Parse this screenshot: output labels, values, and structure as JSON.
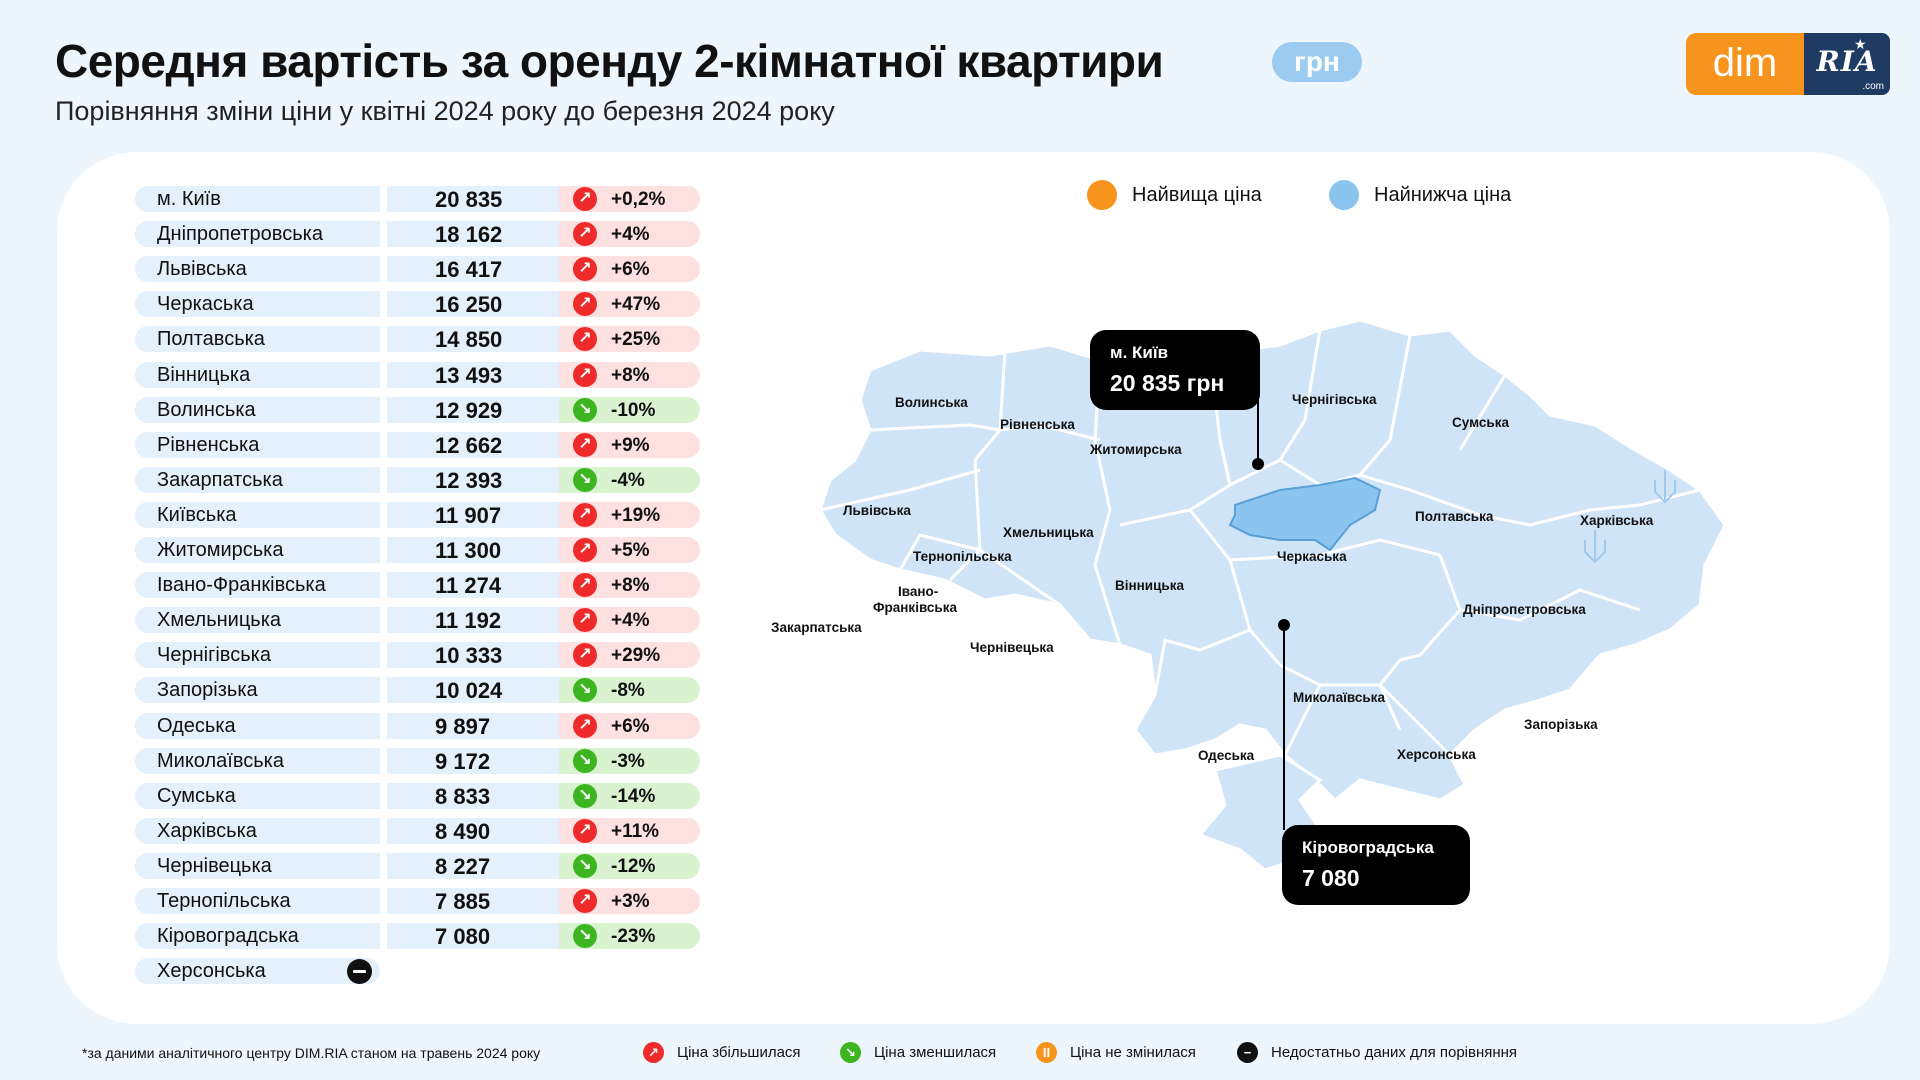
{
  "header": {
    "title": "Середня вартість за оренду 2-кімнатної квартири",
    "currency": "грн",
    "subtitle": "Порівняння зміни ціни у квітні 2024 року до березня 2024 року"
  },
  "logo": {
    "dim": "dim",
    "ria": "RIA",
    "com": ".com"
  },
  "legend": {
    "highest": "Найвища ціна",
    "lowest": "Найнижча ціна"
  },
  "colors": {
    "highest": "#f7941d",
    "lowest": "#8cc4f0",
    "increase": "#ee2a2a",
    "decrease": "#3cb521",
    "unchanged": "#f7941d",
    "no_data": "#111111"
  },
  "chart_data": {
    "type": "table",
    "columns": [
      "region",
      "price_uah",
      "change"
    ],
    "rows": [
      {
        "region": "м. Київ",
        "value": "20 835",
        "price": 20835,
        "change": "+0,2%",
        "dir": "up"
      },
      {
        "region": "Дніпропетровська",
        "value": "18 162",
        "price": 18162,
        "change": "+4%",
        "dir": "up"
      },
      {
        "region": "Львівська",
        "value": "16 417",
        "price": 16417,
        "change": "+6%",
        "dir": "up"
      },
      {
        "region": "Черкаська",
        "value": "16 250",
        "price": 16250,
        "change": "+47%",
        "dir": "up"
      },
      {
        "region": "Полтавська",
        "value": "14 850",
        "price": 14850,
        "change": "+25%",
        "dir": "up"
      },
      {
        "region": "Вінницька",
        "value": "13 493",
        "price": 13493,
        "change": "+8%",
        "dir": "up"
      },
      {
        "region": "Волинська",
        "value": "12 929",
        "price": 12929,
        "change": "-10%",
        "dir": "down"
      },
      {
        "region": "Рівненська",
        "value": "12 662",
        "price": 12662,
        "change": "+9%",
        "dir": "up"
      },
      {
        "region": "Закарпатська",
        "value": "12 393",
        "price": 12393,
        "change": "-4%",
        "dir": "down"
      },
      {
        "region": "Київська",
        "value": "11 907",
        "price": 11907,
        "change": "+19%",
        "dir": "up"
      },
      {
        "region": "Житомирська",
        "value": "11 300",
        "price": 11300,
        "change": "+5%",
        "dir": "up"
      },
      {
        "region": "Івано-Франківська",
        "value": "11 274",
        "price": 11274,
        "change": "+8%",
        "dir": "up"
      },
      {
        "region": "Хмельницька",
        "value": "11 192",
        "price": 11192,
        "change": "+4%",
        "dir": "up"
      },
      {
        "region": "Чернігівська",
        "value": "10 333",
        "price": 10333,
        "change": "+29%",
        "dir": "up"
      },
      {
        "region": "Запорізька",
        "value": "10 024",
        "price": 10024,
        "change": "-8%",
        "dir": "down"
      },
      {
        "region": "Одеська",
        "value": "9 897",
        "price": 9897,
        "change": "+6%",
        "dir": "up"
      },
      {
        "region": "Миколаївська",
        "value": "9 172",
        "price": 9172,
        "change": "-3%",
        "dir": "down"
      },
      {
        "region": "Сумська",
        "value": "8 833",
        "price": 8833,
        "change": "-14%",
        "dir": "down"
      },
      {
        "region": "Харківська",
        "value": "8 490",
        "price": 8490,
        "change": "+11%",
        "dir": "up"
      },
      {
        "region": "Чернівецька",
        "value": "8 227",
        "price": 8227,
        "change": "-12%",
        "dir": "down"
      },
      {
        "region": "Тернопільська",
        "value": "7 885",
        "price": 7885,
        "change": "+3%",
        "dir": "up"
      },
      {
        "region": "Кіровоградська",
        "value": "7 080",
        "price": 7080,
        "change": "-23%",
        "dir": "down"
      },
      {
        "region": "Херсонська",
        "value": "",
        "price": null,
        "change": "",
        "dir": "nodata"
      }
    ]
  },
  "map": {
    "labels": {
      "volyn": "Волинська",
      "rivne": "Рівненська",
      "zhytomyr": "Житомирська",
      "chernihiv": "Чернігівська",
      "sumy": "Сумська",
      "lviv": "Львівська",
      "khmelnytskyi": "Хмельницька",
      "ternopil": "Тернопільська",
      "poltava": "Полтавська",
      "kharkiv": "Харківська",
      "cherkasy": "Черкаська",
      "vinnytsia": "Вінницька",
      "if1": "Івано-",
      "if2": "Франківська",
      "zakarpattia": "Закарпатська",
      "chernivtsi": "Чернівецька",
      "dnipro": "Дніпропетровська",
      "mykolaiv": "Миколаївська",
      "zaporizhzhia": "Запорізька",
      "odesa": "Одеська",
      "kherson": "Херсонська"
    },
    "highest_callout": {
      "name": "м. Київ",
      "value": "20 835 грн"
    },
    "lowest_callout": {
      "name": "Кіровоградська",
      "value": "7 080"
    }
  },
  "footer": {
    "note": "*за даними аналітичного центру DIM.RIA станом на травень 2024 року",
    "up": "Ціна збільшилася",
    "down": "Ціна зменшилася",
    "same": "Ціна не змінилася",
    "nodata": "Недостатньо даних для порівняння"
  }
}
